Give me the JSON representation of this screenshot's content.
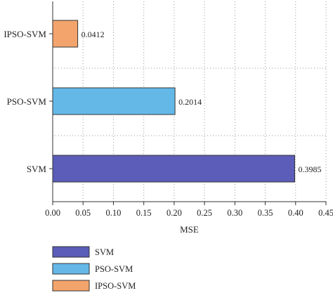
{
  "chart_data": {
    "type": "bar",
    "orientation": "horizontal",
    "categories": [
      "SVM",
      "PSO-SVM",
      "IPSO-SVM"
    ],
    "values": [
      0.3985,
      0.2014,
      0.0412
    ],
    "value_labels": [
      "0.3985",
      "0.2014",
      "0.0412"
    ],
    "colors": [
      "#5b5db8",
      "#63b8e8",
      "#f2a46c"
    ],
    "xlabel": "MSE",
    "ylabel": "",
    "title": "",
    "xlim": [
      0,
      0.45
    ],
    "xticks": [
      "0.00",
      "0.05",
      "0.10",
      "0.15",
      "0.20",
      "0.25",
      "0.30",
      "0.35",
      "0.40",
      "0.45"
    ],
    "grid": true,
    "legend_position": "bottom-left",
    "legend": [
      "SVM",
      "PSO-SVM",
      "IPSO-SVM"
    ]
  }
}
